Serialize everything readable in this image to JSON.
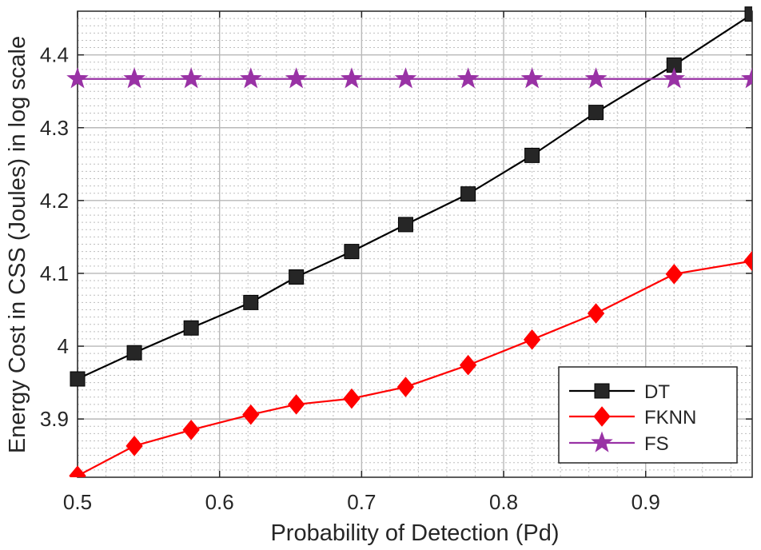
{
  "chart_data": {
    "type": "line",
    "title": "",
    "xlabel": "Probability of Detection (Pd)",
    "ylabel": "Energy Cost in CSS (Joules) in log scale",
    "xlim": [
      0.5,
      0.975
    ],
    "ylim": [
      3.82,
      4.46
    ],
    "xticks": [
      0.5,
      0.6,
      0.7,
      0.8,
      0.9
    ],
    "xtick_labels": [
      "0.5",
      "0.6",
      "0.7",
      "0.8",
      "0.9"
    ],
    "yticks": [
      3.9,
      4.0,
      4.1,
      4.2,
      4.3,
      4.4
    ],
    "ytick_labels": [
      "3.9",
      "4",
      "4.1",
      "4.2",
      "4.3",
      "4.4"
    ],
    "grid": true,
    "minor_grid": true,
    "legend_position": "bottom-right",
    "series": [
      {
        "name": "DT",
        "color": "#000000",
        "marker": "square",
        "x": [
          0.5,
          0.54,
          0.58,
          0.622,
          0.654,
          0.693,
          0.731,
          0.775,
          0.82,
          0.865,
          0.92,
          0.975
        ],
        "y": [
          3.955,
          3.991,
          4.025,
          4.06,
          4.095,
          4.13,
          4.167,
          4.209,
          4.262,
          4.321,
          4.386,
          4.456
        ]
      },
      {
        "name": "FKNN",
        "color": "#ff0000",
        "marker": "diamond",
        "x": [
          0.5,
          0.54,
          0.58,
          0.622,
          0.654,
          0.693,
          0.731,
          0.775,
          0.82,
          0.865,
          0.92,
          0.975
        ],
        "y": [
          3.822,
          3.863,
          3.885,
          3.906,
          3.92,
          3.928,
          3.944,
          3.974,
          4.009,
          4.045,
          4.099,
          4.117
        ]
      },
      {
        "name": "FS",
        "color": "#9932a5",
        "marker": "star",
        "x": [
          0.5,
          0.54,
          0.58,
          0.622,
          0.654,
          0.693,
          0.731,
          0.775,
          0.82,
          0.865,
          0.92,
          0.975
        ],
        "y": [
          4.367,
          4.367,
          4.367,
          4.367,
          4.367,
          4.367,
          4.367,
          4.367,
          4.367,
          4.367,
          4.367,
          4.367
        ]
      }
    ]
  }
}
